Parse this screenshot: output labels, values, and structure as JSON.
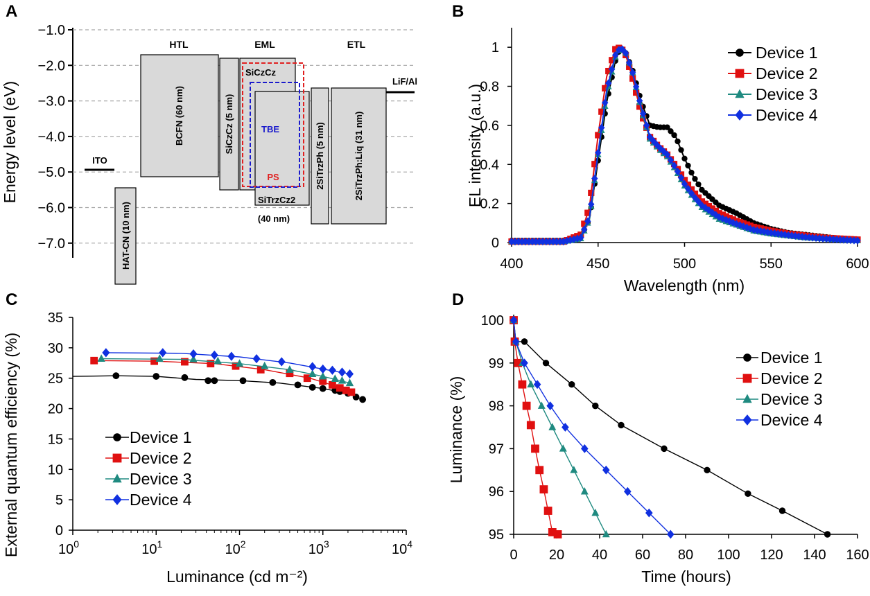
{
  "chart_data": [
    {
      "panel": "A",
      "type": "diagram",
      "ylabel": "Energy level (eV)",
      "yticks": [
        "−1.0",
        "−2.0",
        "−3.0",
        "−4.0",
        "−5.0",
        "−6.0",
        "−7.0"
      ],
      "headers": [
        "HTL",
        "EML",
        "ETL"
      ],
      "layers": [
        {
          "label": "ITO",
          "type": "line",
          "lumo": -5.0
        },
        {
          "label": "HAT-CN (10 nm)",
          "lumo": -5.5,
          "homo": -8.2,
          "rotated": true
        },
        {
          "label": "BCFN (60 nm)",
          "lumo": -1.7,
          "homo": -5.2,
          "rotated": true
        },
        {
          "label": "SiCzCz (5 nm)",
          "lumo": -1.8,
          "homo": -5.55,
          "rotated": true
        },
        {
          "label": "SiCzCz",
          "lumo": -1.8,
          "homo": -5.55
        },
        {
          "label": "SiTrzCz2",
          "lumo": -2.7,
          "homo": -5.95
        },
        {
          "label": "(40 nm)"
        },
        {
          "label": "2SiTrzPh (5 nm)",
          "lumo": -2.6,
          "homo": -6.5,
          "rotated": true
        },
        {
          "label": "2SiTrzPh:Liq (31 nm)",
          "lumo": -2.6,
          "homo": -6.5,
          "rotated": true
        },
        {
          "label": "LiF/Al",
          "type": "line",
          "lumo": -2.8
        }
      ],
      "dopants": [
        {
          "label": "TBE",
          "color": "#1a1acc"
        },
        {
          "label": "PS",
          "color": "#e02020"
        }
      ]
    },
    {
      "panel": "B",
      "type": "line",
      "xlabel": "Wavelength (nm)",
      "ylabel": "EL intensity (a.u.)",
      "xlim": [
        400,
        600
      ],
      "ylim": [
        0,
        1.1
      ],
      "xticks": [
        "400",
        "450",
        "500",
        "550",
        "600"
      ],
      "yticks": [
        "0",
        "0.2",
        "0.4",
        "0.6",
        "0.8",
        "1"
      ],
      "legend": "top-right",
      "series": [
        {
          "name": "Device 1",
          "color": "#000000",
          "marker": "circle",
          "x": [
            400,
            430,
            440,
            445,
            450,
            455,
            460,
            463,
            466,
            470,
            475,
            480,
            485,
            490,
            495,
            500,
            505,
            510,
            520,
            530,
            540,
            550,
            560,
            570,
            580,
            590,
            600
          ],
          "y": [
            0.01,
            0.01,
            0.03,
            0.12,
            0.42,
            0.72,
            0.93,
            1.0,
            0.97,
            0.88,
            0.72,
            0.6,
            0.59,
            0.59,
            0.54,
            0.43,
            0.34,
            0.27,
            0.19,
            0.15,
            0.1,
            0.07,
            0.05,
            0.04,
            0.03,
            0.02,
            0.015
          ]
        },
        {
          "name": "Device 2",
          "color": "#e01010",
          "marker": "square",
          "x": [
            400,
            430,
            440,
            445,
            450,
            455,
            460,
            463,
            466,
            470,
            475,
            480,
            485,
            490,
            495,
            500,
            505,
            510,
            520,
            530,
            540,
            550,
            560,
            570,
            580,
            590,
            600
          ],
          "y": [
            0.005,
            0.005,
            0.04,
            0.18,
            0.55,
            0.85,
            0.99,
            1.0,
            0.96,
            0.84,
            0.66,
            0.54,
            0.49,
            0.45,
            0.39,
            0.32,
            0.26,
            0.21,
            0.15,
            0.11,
            0.08,
            0.06,
            0.045,
            0.035,
            0.025,
            0.02,
            0.015
          ]
        },
        {
          "name": "Device 3",
          "color": "#1f8a80",
          "marker": "triangle",
          "x": [
            400,
            430,
            440,
            445,
            450,
            455,
            460,
            463,
            466,
            470,
            475,
            480,
            485,
            490,
            495,
            500,
            505,
            510,
            520,
            530,
            540,
            550,
            560,
            570,
            580,
            590,
            600
          ],
          "y": [
            0.005,
            0.005,
            0.02,
            0.12,
            0.45,
            0.76,
            0.95,
            1.0,
            0.97,
            0.87,
            0.68,
            0.53,
            0.48,
            0.44,
            0.37,
            0.29,
            0.23,
            0.18,
            0.12,
            0.09,
            0.06,
            0.045,
            0.035,
            0.025,
            0.02,
            0.015,
            0.01
          ]
        },
        {
          "name": "Device 4",
          "color": "#1030e0",
          "marker": "diamond",
          "x": [
            400,
            430,
            440,
            445,
            450,
            455,
            460,
            463,
            466,
            470,
            475,
            480,
            485,
            490,
            495,
            500,
            505,
            510,
            520,
            530,
            540,
            550,
            560,
            570,
            580,
            590,
            600
          ],
          "y": [
            0.005,
            0.005,
            0.025,
            0.13,
            0.46,
            0.78,
            0.96,
            1.0,
            0.97,
            0.87,
            0.69,
            0.54,
            0.49,
            0.45,
            0.38,
            0.3,
            0.24,
            0.19,
            0.13,
            0.095,
            0.065,
            0.05,
            0.038,
            0.028,
            0.02,
            0.015,
            0.01
          ]
        }
      ]
    },
    {
      "panel": "C",
      "type": "scatter",
      "xlabel": "Luminance (cd m⁻²)",
      "ylabel": "External quantum efficiency (%)",
      "xscale": "log",
      "xlim": [
        1,
        10000
      ],
      "ylim": [
        0,
        35
      ],
      "xtick_base": "10",
      "xtick_exponents": [
        "0",
        "1",
        "2",
        "3",
        "4"
      ],
      "yticks": [
        "0",
        "5",
        "10",
        "15",
        "20",
        "25",
        "30",
        "35"
      ],
      "legend": "bottom-left",
      "series": [
        {
          "name": "Device 1",
          "color": "#000000",
          "marker": "circle",
          "x": [
            3.3,
            10,
            22,
            42,
            50,
            110,
            250,
            500,
            750,
            1000,
            1400,
            1600,
            2000,
            2500,
            3000
          ],
          "y": [
            25.4,
            25.3,
            25.1,
            24.6,
            24.6,
            24.6,
            24.3,
            23.9,
            23.5,
            23.3,
            23.0,
            22.8,
            22.5,
            21.9,
            21.5
          ],
          "curve": [
            [
              1,
              25.3
            ],
            [
              3.3,
              25.4
            ],
            [
              10,
              25.3
            ],
            [
              30,
              24.8
            ],
            [
              100,
              24.6
            ],
            [
              300,
              24.2
            ],
            [
              1000,
              23.3
            ],
            [
              2000,
              22.5
            ],
            [
              3000,
              21.5
            ]
          ]
        },
        {
          "name": "Device 2",
          "color": "#e01010",
          "marker": "square",
          "x": [
            1.8,
            9.5,
            22,
            45,
            90,
            180,
            400,
            650,
            1000,
            1300,
            1600,
            1900,
            2200
          ],
          "y": [
            27.9,
            27.8,
            27.7,
            27.4,
            27.0,
            26.4,
            25.8,
            25.0,
            24.5,
            23.9,
            23.4,
            23.0,
            22.7
          ],
          "curve": [
            [
              1.8,
              27.9
            ],
            [
              10,
              27.8
            ],
            [
              50,
              27.4
            ],
            [
              200,
              26.4
            ],
            [
              700,
              25.0
            ],
            [
              1500,
              23.6
            ],
            [
              2200,
              22.7
            ]
          ]
        },
        {
          "name": "Device 3",
          "color": "#1f8a80",
          "marker": "triangle",
          "x": [
            2.2,
            11,
            28,
            55,
            100,
            200,
            400,
            750,
            1000,
            1400,
            1700,
            2100
          ],
          "y": [
            28.2,
            28.2,
            28.1,
            27.8,
            27.4,
            27.0,
            26.4,
            25.7,
            25.3,
            24.9,
            24.6,
            24.2
          ],
          "curve": [
            [
              2.2,
              28.2
            ],
            [
              20,
              28.1
            ],
            [
              100,
              27.4
            ],
            [
              400,
              26.4
            ],
            [
              1000,
              25.3
            ],
            [
              2100,
              24.2
            ]
          ]
        },
        {
          "name": "Device 4",
          "color": "#1030e0",
          "marker": "diamond",
          "x": [
            2.5,
            12,
            28,
            50,
            80,
            160,
            320,
            750,
            1000,
            1300,
            1700,
            2100
          ],
          "y": [
            29.2,
            29.2,
            29.0,
            28.8,
            28.6,
            28.2,
            27.7,
            26.9,
            26.5,
            26.3,
            26.0,
            25.7
          ],
          "curve": [
            [
              2.5,
              29.2
            ],
            [
              20,
              29.1
            ],
            [
              100,
              28.5
            ],
            [
              400,
              27.5
            ],
            [
              1000,
              26.5
            ],
            [
              2100,
              25.7
            ]
          ]
        }
      ]
    },
    {
      "panel": "D",
      "type": "line",
      "xlabel": "Time (hours)",
      "ylabel": "Luminance (%)",
      "xlim": [
        0,
        160
      ],
      "ylim": [
        95,
        100
      ],
      "xticks": [
        "0",
        "20",
        "40",
        "60",
        "80",
        "100",
        "120",
        "140",
        "160"
      ],
      "yticks": [
        "95",
        "96",
        "97",
        "98",
        "99",
        "100"
      ],
      "legend": "top-right",
      "series": [
        {
          "name": "Device 1",
          "color": "#000000",
          "marker": "circle",
          "x": [
            0,
            1,
            5,
            15,
            27,
            38,
            50,
            70,
            90,
            109,
            125,
            146
          ],
          "y": [
            100,
            99.5,
            99.5,
            99.0,
            98.5,
            98.0,
            97.55,
            97.0,
            96.5,
            95.95,
            95.55,
            95.0
          ]
        },
        {
          "name": "Device 2",
          "color": "#e01010",
          "marker": "square",
          "x": [
            0,
            0.5,
            2,
            4,
            6,
            8,
            10,
            12,
            14,
            16,
            18,
            20.5
          ],
          "y": [
            100,
            99.5,
            99.0,
            98.5,
            98.0,
            97.55,
            97.0,
            96.5,
            96.05,
            95.55,
            95.05,
            95.0
          ]
        },
        {
          "name": "Device 3",
          "color": "#1f8a80",
          "marker": "triangle",
          "x": [
            0,
            1,
            4,
            8,
            13,
            18,
            23,
            28,
            33,
            38,
            43
          ],
          "y": [
            100,
            99.5,
            99.0,
            98.5,
            98.0,
            97.5,
            97.0,
            96.5,
            96.0,
            95.5,
            95.0
          ]
        },
        {
          "name": "Device 4",
          "color": "#1030e0",
          "marker": "diamond",
          "x": [
            0,
            1,
            5,
            11,
            17,
            24,
            33,
            43,
            53,
            63,
            73
          ],
          "y": [
            100,
            99.5,
            99.0,
            98.5,
            98.0,
            97.5,
            97.0,
            96.5,
            96.0,
            95.5,
            95.0
          ]
        }
      ]
    }
  ]
}
